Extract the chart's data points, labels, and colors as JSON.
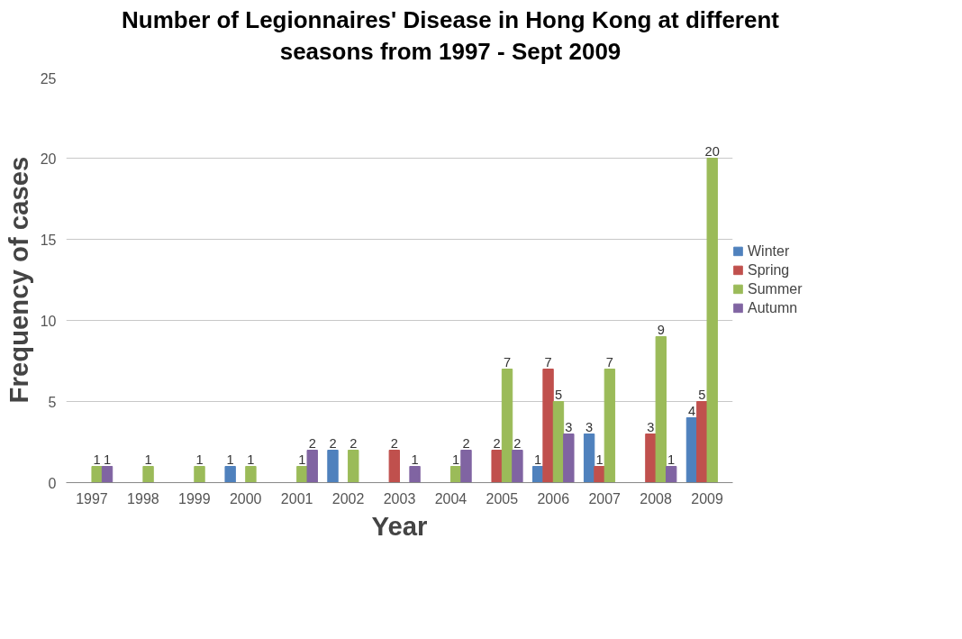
{
  "chart_data": {
    "type": "bar",
    "title": "Number of Legionnaires' Disease in Hong Kong at different seasons from 1997 - Sept 2009",
    "xlabel": "Year",
    "ylabel": "Frequency of cases",
    "categories": [
      "1997",
      "1998",
      "1999",
      "2000",
      "2001",
      "2002",
      "2003",
      "2004",
      "2005",
      "2006",
      "2007",
      "2008",
      "2009"
    ],
    "series": [
      {
        "name": "Winter",
        "color": "#4f81bd",
        "values": [
          null,
          null,
          null,
          1,
          null,
          2,
          null,
          null,
          null,
          1,
          3,
          null,
          4
        ]
      },
      {
        "name": "Spring",
        "color": "#c0504d",
        "values": [
          null,
          null,
          null,
          null,
          null,
          null,
          2,
          null,
          2,
          7,
          1,
          3,
          5
        ]
      },
      {
        "name": "Summer",
        "color": "#9bbb59",
        "values": [
          1,
          1,
          1,
          1,
          1,
          2,
          null,
          1,
          7,
          5,
          7,
          9,
          20
        ]
      },
      {
        "name": "Autumn",
        "color": "#8064a2",
        "values": [
          1,
          null,
          null,
          null,
          2,
          null,
          1,
          2,
          2,
          3,
          null,
          1,
          null
        ]
      }
    ],
    "ylim": [
      0,
      25
    ],
    "yticks": [
      0,
      5,
      10,
      15,
      20,
      25
    ],
    "grid": "y",
    "legend": "right",
    "data_labels": true
  }
}
